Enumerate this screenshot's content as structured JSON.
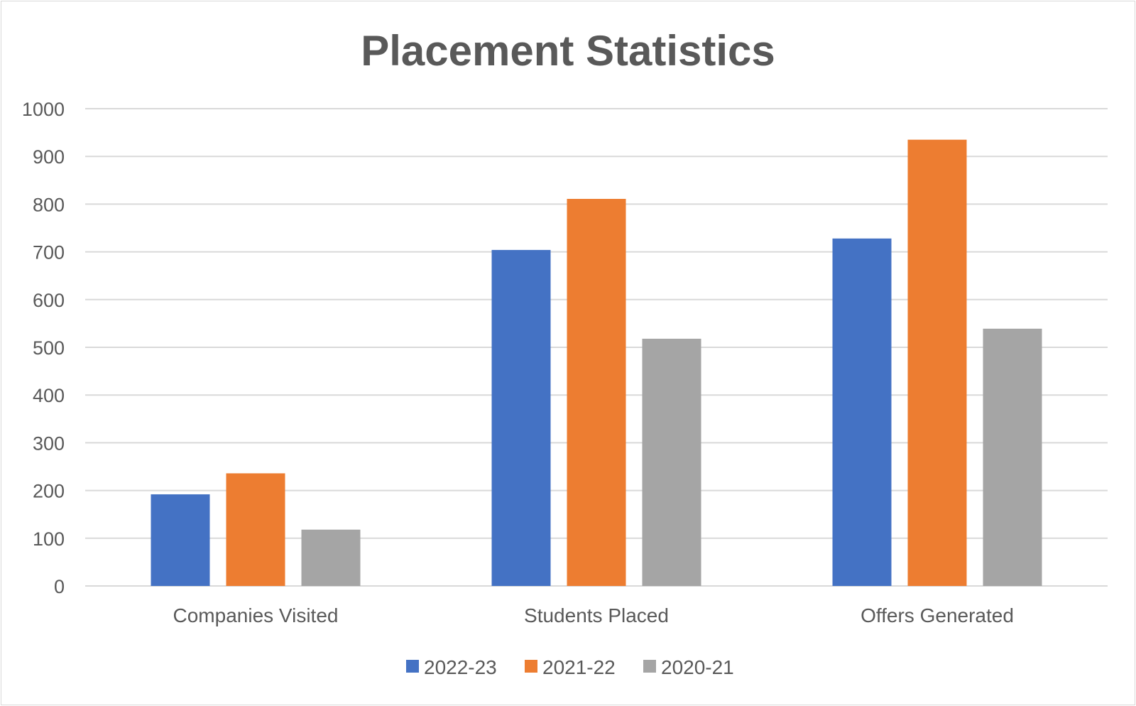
{
  "chart_data": {
    "type": "bar",
    "title": "Placement Statistics",
    "xlabel": "",
    "ylabel": "",
    "categories": [
      "Companies Visited",
      "Students Placed",
      "Offers Generated"
    ],
    "series": [
      {
        "name": "2022-23",
        "color": "#4472C4",
        "values": [
          192,
          704,
          728
        ]
      },
      {
        "name": "2021-22",
        "color": "#ED7D31",
        "values": [
          236,
          811,
          935
        ]
      },
      {
        "name": "2020-21",
        "color": "#A5A5A5",
        "values": [
          118,
          518,
          539
        ]
      }
    ],
    "ylim": [
      0,
      1000
    ],
    "yticks": [
      0,
      100,
      200,
      300,
      400,
      500,
      600,
      700,
      800,
      900,
      1000
    ],
    "grid": true,
    "legend_position": "bottom"
  }
}
